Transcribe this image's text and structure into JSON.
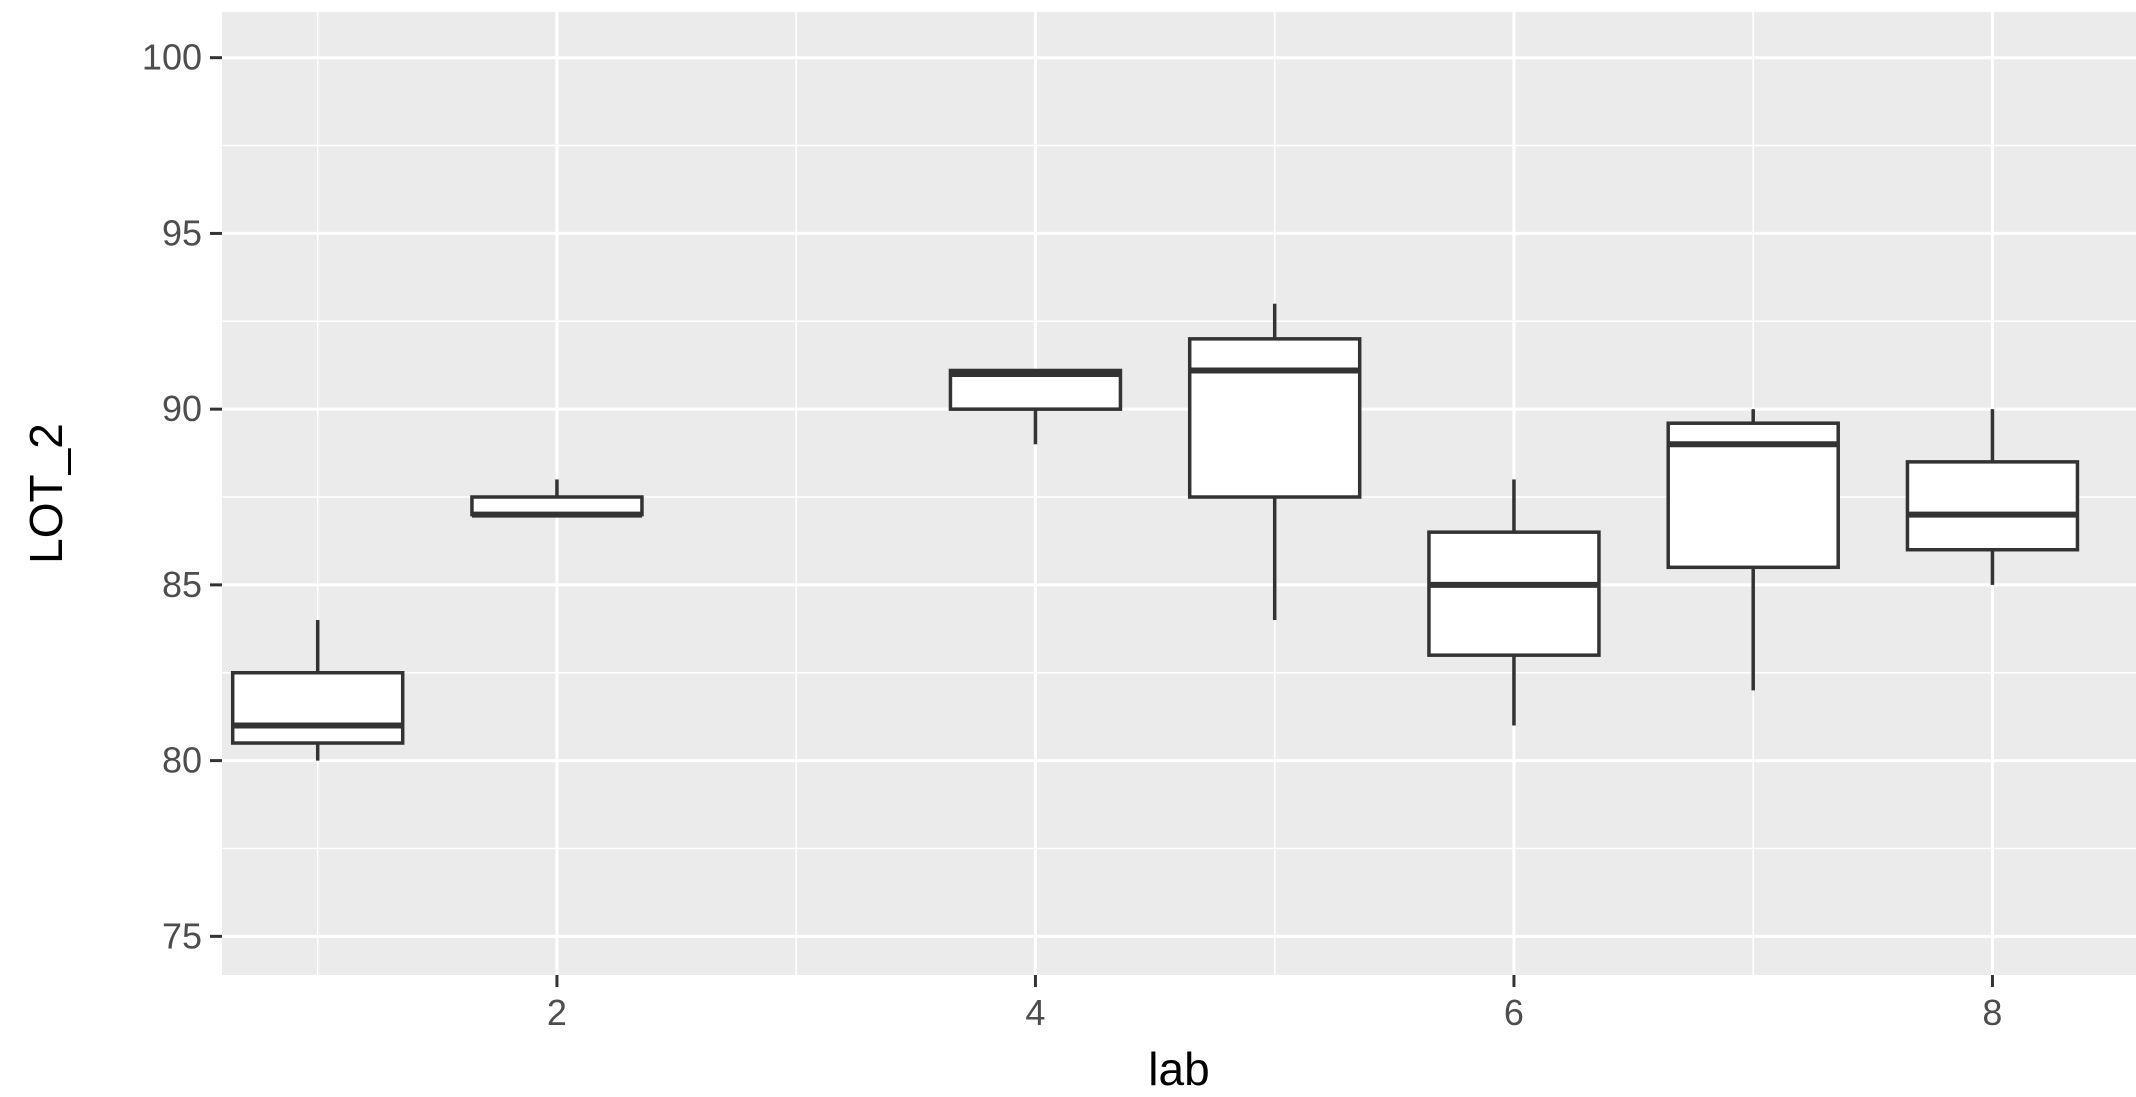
{
  "chart_data": {
    "type": "boxplot",
    "title": "",
    "xlabel": "lab",
    "ylabel": "LOT_2",
    "xlim": [
      0.6,
      8.6
    ],
    "ylim": [
      73.9,
      101.3
    ],
    "x_ticks": [
      2,
      4,
      6,
      8
    ],
    "x_minor_ticks": [
      1,
      3,
      5,
      7
    ],
    "y_ticks": [
      75,
      80,
      85,
      90,
      95,
      100
    ],
    "y_minor_ticks": [
      77.5,
      82.5,
      87.5,
      92.5,
      97.5
    ],
    "grid": true,
    "legend": "none",
    "boxes": [
      {
        "lab": 1,
        "min": 80.0,
        "q1": 80.5,
        "median": 81.0,
        "q3": 82.5,
        "max": 84.0
      },
      {
        "lab": 2,
        "min": 87.0,
        "q1": 87.0,
        "median": 87.0,
        "q3": 87.5,
        "max": 88.0
      },
      {
        "lab": 4,
        "min": 89.0,
        "q1": 90.0,
        "median": 91.0,
        "q3": 91.1,
        "max": 91.1
      },
      {
        "lab": 5,
        "min": 84.0,
        "q1": 87.5,
        "median": 91.1,
        "q3": 92.0,
        "max": 93.0
      },
      {
        "lab": 6,
        "min": 81.0,
        "q1": 83.0,
        "median": 85.0,
        "q3": 86.5,
        "max": 88.0
      },
      {
        "lab": 7,
        "min": 82.0,
        "q1": 85.5,
        "median": 89.0,
        "q3": 89.6,
        "max": 90.0
      },
      {
        "lab": 8,
        "min": 85.0,
        "q1": 86.0,
        "median": 87.0,
        "q3": 88.5,
        "max": 90.0
      }
    ]
  },
  "colors": {
    "panel_background": "#ebebeb",
    "grid": "#ffffff",
    "box_fill": "#ffffff",
    "box_stroke": "#333333",
    "tick_text": "#4d4d4d",
    "tick_mark": "#333333",
    "axis_title": "#000000"
  }
}
